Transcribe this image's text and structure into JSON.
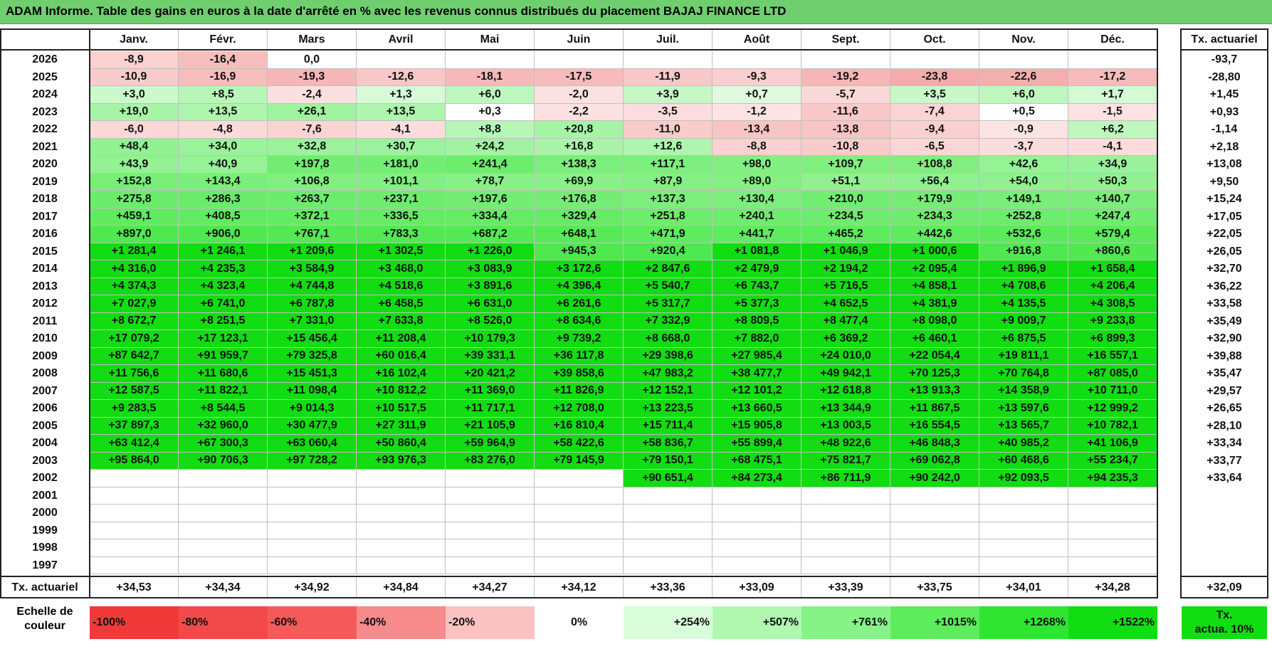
{
  "title": "ADAM Informe. Table des gains en euros à la date d'arrêté en % avec les revenus connus distribués du placement BAJAJ FINANCE LTD",
  "months": [
    "Janv.",
    "Févr.",
    "Mars",
    "Avril",
    "Mai",
    "Juin",
    "Juil.",
    "Août",
    "Sept.",
    "Oct.",
    "Nov.",
    "Déc."
  ],
  "rate_header": "Tx. actuariel",
  "rows": [
    {
      "year": "2026",
      "values": [
        "-8,9",
        "-16,4",
        "0,0",
        "",
        "",
        "",
        "",
        "",
        "",
        "",
        "",
        ""
      ],
      "rate": "-93,7"
    },
    {
      "year": "2025",
      "values": [
        "-10,9",
        "-16,9",
        "-19,3",
        "-12,6",
        "-18,1",
        "-17,5",
        "-11,9",
        "-9,3",
        "-19,2",
        "-23,8",
        "-22,6",
        "-17,2"
      ],
      "rate": "-28,80"
    },
    {
      "year": "2024",
      "values": [
        "+3,0",
        "+8,5",
        "-2,4",
        "+1,3",
        "+6,0",
        "-2,0",
        "+3,9",
        "+0,7",
        "-5,7",
        "+3,5",
        "+6,0",
        "+1,7"
      ],
      "rate": "+1,45"
    },
    {
      "year": "2023",
      "values": [
        "+19,0",
        "+13,5",
        "+26,1",
        "+13,5",
        "+0,3",
        "-2,2",
        "-3,5",
        "-1,2",
        "-11,6",
        "-7,4",
        "+0,5",
        "-1,5"
      ],
      "rate": "+0,93"
    },
    {
      "year": "2022",
      "values": [
        "-6,0",
        "-4,8",
        "-7,6",
        "-4,1",
        "+8,8",
        "+20,8",
        "-11,0",
        "-13,4",
        "-13,8",
        "-9,4",
        "-0,9",
        "+6,2"
      ],
      "rate": "-1,14"
    },
    {
      "year": "2021",
      "values": [
        "+48,4",
        "+34,0",
        "+32,8",
        "+30,7",
        "+24,2",
        "+16,8",
        "+12,6",
        "-8,8",
        "-10,8",
        "-6,5",
        "-3,7",
        "-4,1"
      ],
      "rate": "+2,18"
    },
    {
      "year": "2020",
      "values": [
        "+43,9",
        "+40,9",
        "+197,8",
        "+181,0",
        "+241,4",
        "+138,3",
        "+117,1",
        "+98,0",
        "+109,7",
        "+108,8",
        "+42,6",
        "+34,9"
      ],
      "rate": "+13,08"
    },
    {
      "year": "2019",
      "values": [
        "+152,8",
        "+143,4",
        "+106,8",
        "+101,1",
        "+78,7",
        "+69,9",
        "+87,9",
        "+89,0",
        "+51,1",
        "+56,4",
        "+54,0",
        "+50,3"
      ],
      "rate": "+9,50"
    },
    {
      "year": "2018",
      "values": [
        "+275,8",
        "+286,3",
        "+263,7",
        "+237,1",
        "+197,6",
        "+176,8",
        "+137,3",
        "+130,4",
        "+210,0",
        "+179,9",
        "+149,1",
        "+140,7"
      ],
      "rate": "+15,24"
    },
    {
      "year": "2017",
      "values": [
        "+459,1",
        "+408,5",
        "+372,1",
        "+336,5",
        "+334,4",
        "+329,4",
        "+251,8",
        "+240,1",
        "+234,5",
        "+234,3",
        "+252,8",
        "+247,4"
      ],
      "rate": "+17,05"
    },
    {
      "year": "2016",
      "values": [
        "+897,0",
        "+906,0",
        "+767,1",
        "+783,3",
        "+687,2",
        "+648,1",
        "+471,9",
        "+441,7",
        "+465,2",
        "+442,6",
        "+532,6",
        "+579,4"
      ],
      "rate": "+22,05"
    },
    {
      "year": "2015",
      "values": [
        "+1 281,4",
        "+1 246,1",
        "+1 209,6",
        "+1 302,5",
        "+1 226,0",
        "+945,3",
        "+920,4",
        "+1 081,8",
        "+1 046,9",
        "+1 000,6",
        "+916,8",
        "+860,6"
      ],
      "rate": "+26,05"
    },
    {
      "year": "2014",
      "values": [
        "+4 316,0",
        "+4 235,3",
        "+3 584,9",
        "+3 468,0",
        "+3 083,9",
        "+3 172,6",
        "+2 847,6",
        "+2 479,9",
        "+2 194,2",
        "+2 095,4",
        "+1 896,9",
        "+1 658,4"
      ],
      "rate": "+32,70"
    },
    {
      "year": "2013",
      "values": [
        "+4 374,3",
        "+4 323,4",
        "+4 744,8",
        "+4 518,6",
        "+3 891,6",
        "+4 396,4",
        "+5 540,7",
        "+6 743,7",
        "+5 716,5",
        "+4 858,1",
        "+4 708,6",
        "+4 206,4"
      ],
      "rate": "+36,22"
    },
    {
      "year": "2012",
      "values": [
        "+7 027,9",
        "+6 741,0",
        "+6 787,8",
        "+6 458,5",
        "+6 631,0",
        "+6 261,6",
        "+5 317,7",
        "+5 377,3",
        "+4 652,5",
        "+4 381,9",
        "+4 135,5",
        "+4 308,5"
      ],
      "rate": "+33,58"
    },
    {
      "year": "2011",
      "values": [
        "+8 672,7",
        "+8 251,5",
        "+7 331,0",
        "+7 633,8",
        "+8 526,0",
        "+8 634,6",
        "+7 332,9",
        "+8 809,5",
        "+8 477,4",
        "+8 098,0",
        "+9 009,7",
        "+9 233,8"
      ],
      "rate": "+35,49"
    },
    {
      "year": "2010",
      "values": [
        "+17 079,2",
        "+17 123,1",
        "+15 456,4",
        "+11 208,4",
        "+10 179,3",
        "+9 739,2",
        "+8 668,0",
        "+7 882,0",
        "+6 369,2",
        "+6 460,1",
        "+6 875,5",
        "+6 899,3"
      ],
      "rate": "+32,90"
    },
    {
      "year": "2009",
      "values": [
        "+87 642,7",
        "+91 959,7",
        "+79 325,8",
        "+60 016,4",
        "+39 331,1",
        "+36 117,8",
        "+29 398,6",
        "+27 985,4",
        "+24 010,0",
        "+22 054,4",
        "+19 811,1",
        "+16 557,1"
      ],
      "rate": "+39,88"
    },
    {
      "year": "2008",
      "values": [
        "+11 756,6",
        "+11 680,6",
        "+15 451,3",
        "+16 102,4",
        "+20 421,2",
        "+39 858,6",
        "+47 983,2",
        "+38 477,7",
        "+49 942,1",
        "+70 125,3",
        "+70 764,8",
        "+87 085,0"
      ],
      "rate": "+35,47"
    },
    {
      "year": "2007",
      "values": [
        "+12 587,5",
        "+11 822,1",
        "+11 098,4",
        "+10 812,2",
        "+11 369,0",
        "+11 826,9",
        "+12 152,1",
        "+12 101,2",
        "+12 618,8",
        "+13 913,3",
        "+14 358,9",
        "+10 711,0"
      ],
      "rate": "+29,57"
    },
    {
      "year": "2006",
      "values": [
        "+9 283,5",
        "+8 544,5",
        "+9 014,3",
        "+10 517,5",
        "+11 717,1",
        "+12 708,0",
        "+13 223,5",
        "+13 660,5",
        "+13 344,9",
        "+11 867,5",
        "+13 597,6",
        "+12 999,2"
      ],
      "rate": "+26,65"
    },
    {
      "year": "2005",
      "values": [
        "+37 897,3",
        "+32 960,0",
        "+30 477,9",
        "+27 311,9",
        "+21 105,9",
        "+16 810,4",
        "+15 711,4",
        "+15 905,8",
        "+13 003,5",
        "+16 554,5",
        "+13 565,7",
        "+10 782,1"
      ],
      "rate": "+28,10"
    },
    {
      "year": "2004",
      "values": [
        "+63 412,4",
        "+67 300,3",
        "+63 060,4",
        "+50 860,4",
        "+59 964,9",
        "+58 422,6",
        "+58 836,7",
        "+55 899,4",
        "+48 922,6",
        "+46 848,3",
        "+40 985,2",
        "+41 106,9"
      ],
      "rate": "+33,34"
    },
    {
      "year": "2003",
      "values": [
        "+95 864,0",
        "+90 706,3",
        "+97 728,2",
        "+93 976,3",
        "+83 276,0",
        "+79 145,9",
        "+79 150,1",
        "+68 475,1",
        "+75 821,7",
        "+69 062,8",
        "+60 468,6",
        "+55 234,7"
      ],
      "rate": "+33,77"
    },
    {
      "year": "2002",
      "values": [
        "",
        "",
        "",
        "",
        "",
        "",
        "+90 651,4",
        "+84 273,4",
        "+86 711,9",
        "+90 242,0",
        "+92 093,5",
        "+94 235,3"
      ],
      "rate": "+33,64"
    },
    {
      "year": "2001",
      "values": [
        "",
        "",
        "",
        "",
        "",
        "",
        "",
        "",
        "",
        "",
        "",
        ""
      ],
      "rate": ""
    },
    {
      "year": "2000",
      "values": [
        "",
        "",
        "",
        "",
        "",
        "",
        "",
        "",
        "",
        "",
        "",
        ""
      ],
      "rate": ""
    },
    {
      "year": "1999",
      "values": [
        "",
        "",
        "",
        "",
        "",
        "",
        "",
        "",
        "",
        "",
        "",
        ""
      ],
      "rate": ""
    },
    {
      "year": "1998",
      "values": [
        "",
        "",
        "",
        "",
        "",
        "",
        "",
        "",
        "",
        "",
        "",
        ""
      ],
      "rate": ""
    },
    {
      "year": "1997",
      "values": [
        "",
        "",
        "",
        "",
        "",
        "",
        "",
        "",
        "",
        "",
        "",
        ""
      ],
      "rate": ""
    }
  ],
  "footer": {
    "label": "Tx. actuariel",
    "values": [
      "+34,53",
      "+34,34",
      "+34,92",
      "+34,84",
      "+34,27",
      "+34,12",
      "+33,36",
      "+33,09",
      "+33,39",
      "+33,75",
      "+34,01",
      "+34,28"
    ],
    "rate": "+32,09"
  },
  "legend": {
    "label_line1": "Echelle de",
    "label_line2": "couleur",
    "items": [
      {
        "text": "-100%",
        "color": "#f03a3a",
        "align": "left"
      },
      {
        "text": "-80%",
        "color": "#f24a4a",
        "align": "left"
      },
      {
        "text": "-60%",
        "color": "#f45a5a",
        "align": "left"
      },
      {
        "text": "-40%",
        "color": "#f78a8a",
        "align": "left"
      },
      {
        "text": "-20%",
        "color": "#fbc2c2",
        "align": "left"
      },
      {
        "text": "0%",
        "color": "#ffffff",
        "align": "center"
      },
      {
        "text": "+254%",
        "color": "#d9fdd9",
        "align": "right"
      },
      {
        "text": "+507%",
        "color": "#b0f8b0",
        "align": "right"
      },
      {
        "text": "+761%",
        "color": "#86f386",
        "align": "right"
      },
      {
        "text": "+1015%",
        "color": "#5cec5c",
        "align": "right"
      },
      {
        "text": "+1268%",
        "color": "#30e530",
        "align": "right"
      },
      {
        "text": "+1522%",
        "color": "#12dd12",
        "align": "right"
      }
    ],
    "rate_line1": "Tx.",
    "rate_line2": "actua. 10%",
    "rate_color": "#12dd12"
  },
  "colors": {
    "title_bg": "#6fcf6f",
    "neg_strong": "#f4a8a8",
    "neg_light": "#fde6e6",
    "pos_light": "#eafdea",
    "pos_strong": "#12dd12"
  }
}
